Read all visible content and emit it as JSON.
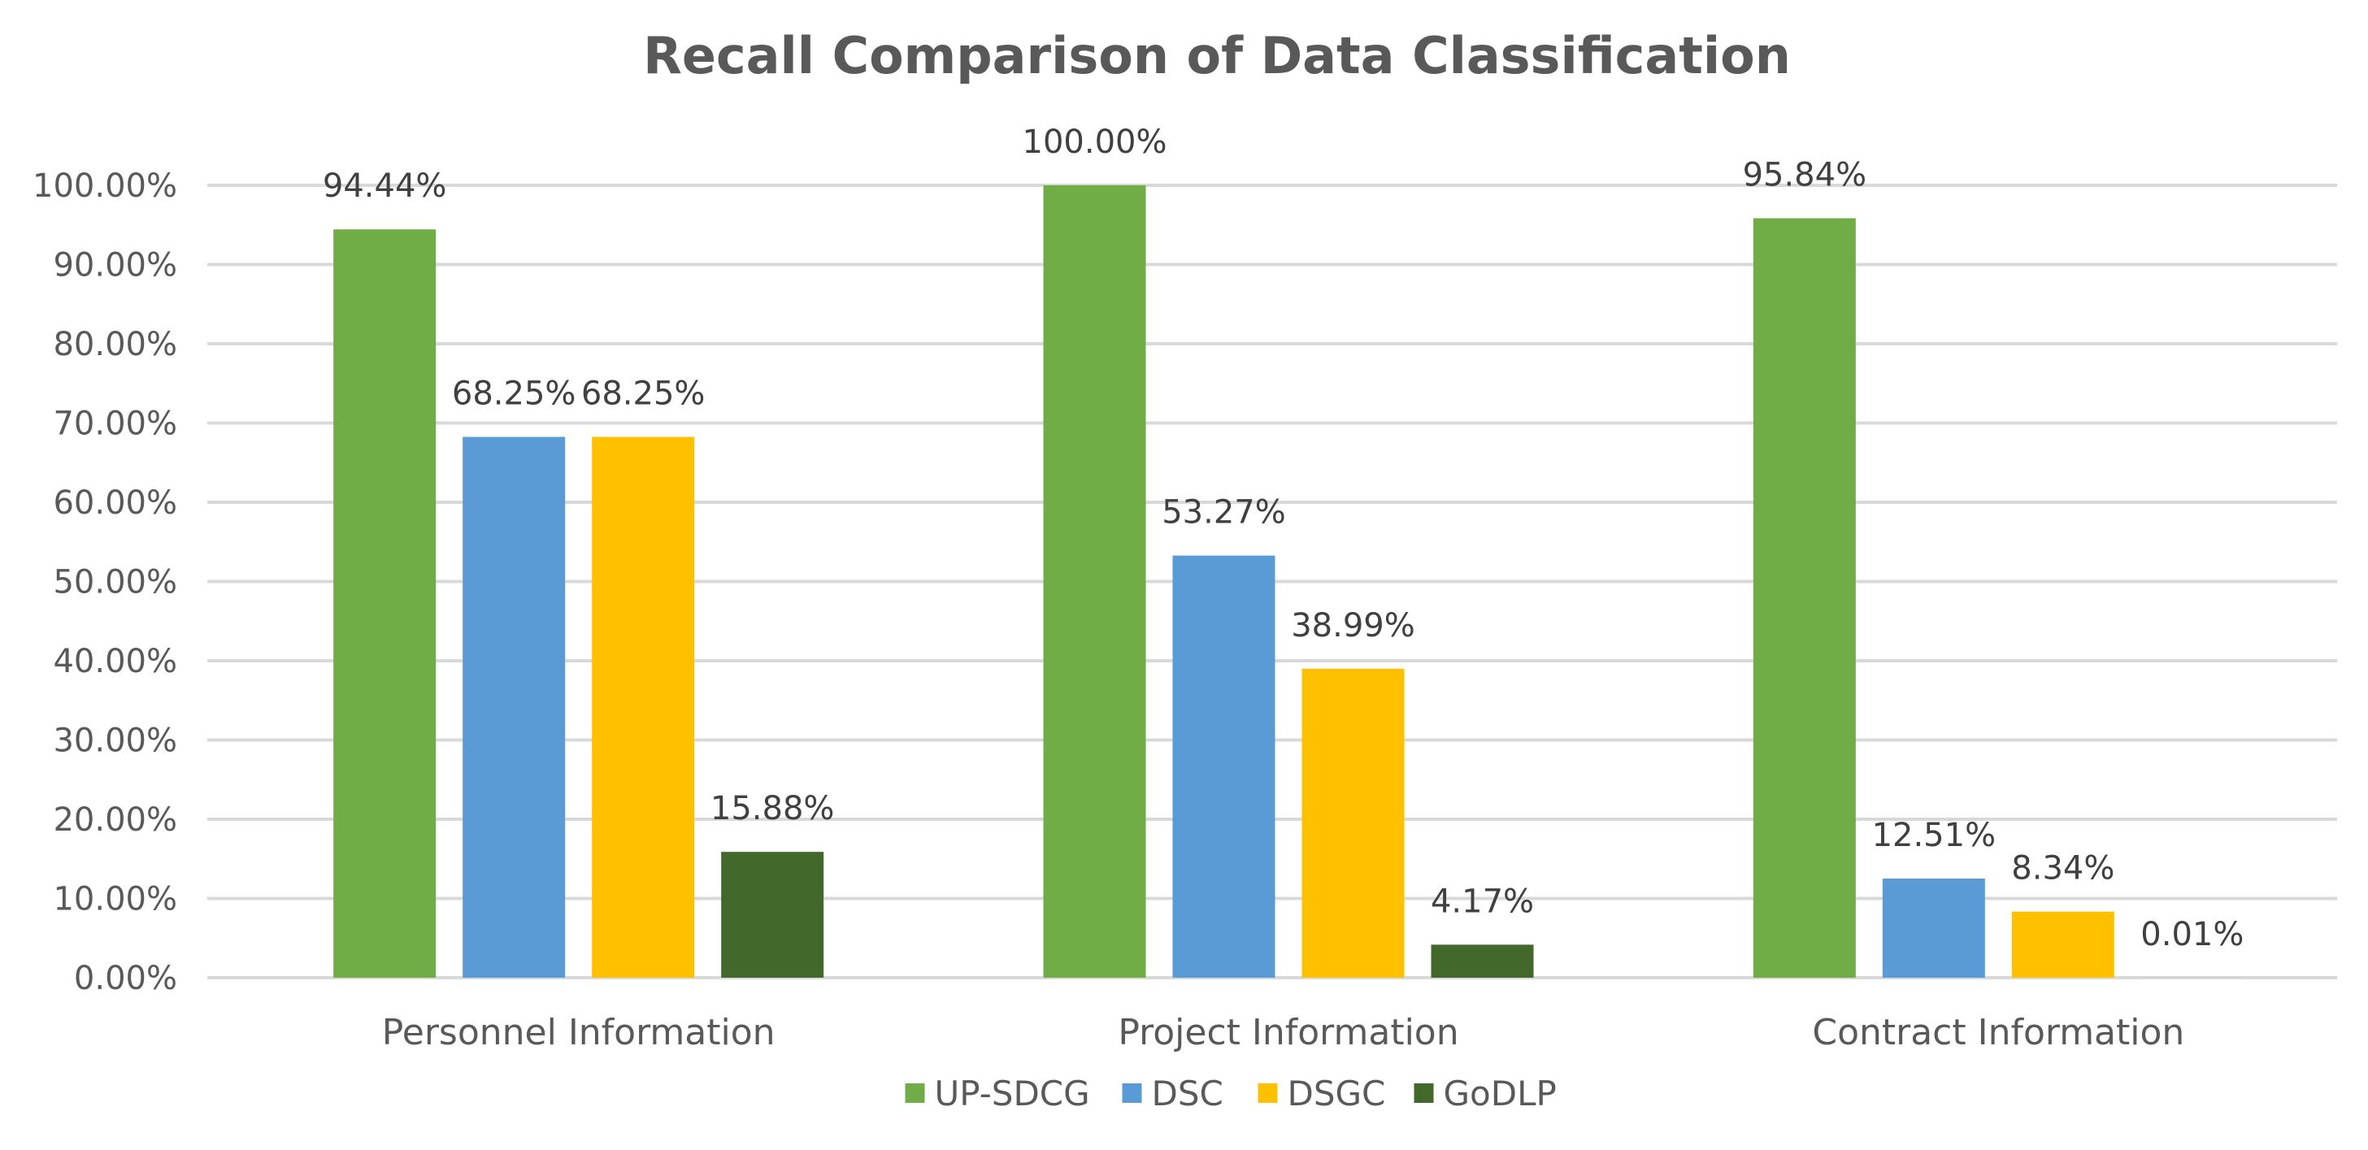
{
  "chart_data": {
    "type": "bar",
    "title": "Recall Comparison of Data Classification",
    "xlabel": "",
    "ylabel": "",
    "categories": [
      "Personnel Information",
      "Project Information",
      "Contract Information"
    ],
    "series": [
      {
        "name": "UP-SDCG",
        "color": "#70ad47",
        "values": [
          94.44,
          100.0,
          95.84
        ],
        "labels": [
          "94.44%",
          "100.00%",
          "95.84%"
        ]
      },
      {
        "name": "DSC",
        "color": "#5b9bd5",
        "values": [
          68.25,
          53.27,
          12.51
        ],
        "labels": [
          "68.25%",
          "53.27%",
          "12.51%"
        ]
      },
      {
        "name": "DSGC",
        "color": "#ffc000",
        "values": [
          68.25,
          38.99,
          8.34
        ],
        "labels": [
          "68.25%",
          "38.99%",
          "8.34%"
        ]
      },
      {
        "name": "GoDLP",
        "color": "#43682b",
        "values": [
          15.88,
          4.17,
          0.01
        ],
        "labels": [
          "15.88%",
          "4.17%",
          "0.01%"
        ]
      }
    ],
    "ylim": [
      0,
      100
    ],
    "yticks": [
      0,
      10,
      20,
      30,
      40,
      50,
      60,
      70,
      80,
      90,
      100
    ],
    "ytick_labels": [
      "0.00%",
      "10.00%",
      "20.00%",
      "30.00%",
      "40.00%",
      "50.00%",
      "60.00%",
      "70.00%",
      "80.00%",
      "90.00%",
      "100.00%"
    ],
    "grid": true,
    "legend": "bottom-center"
  }
}
